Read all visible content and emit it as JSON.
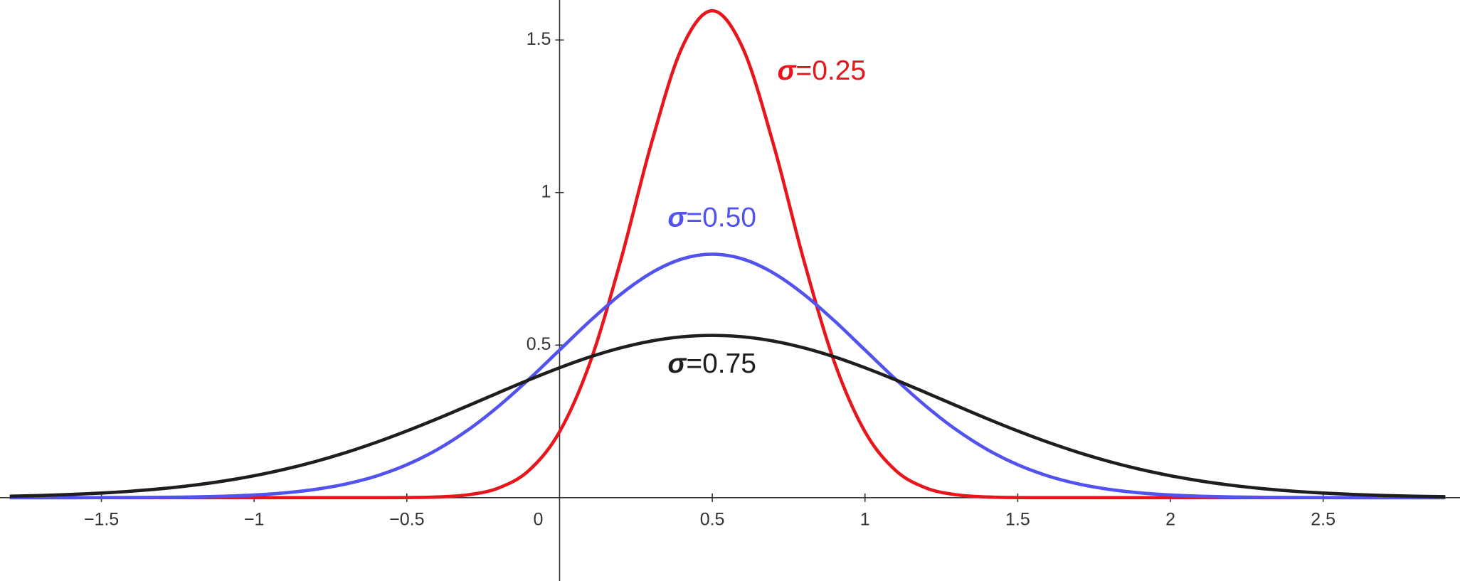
{
  "chart_data": {
    "type": "line",
    "x": [
      -1.8,
      -1.7,
      -1.6,
      -1.5,
      -1.4,
      -1.3,
      -1.2,
      -1.1,
      -1.0,
      -0.9,
      -0.8,
      -0.7,
      -0.6,
      -0.5,
      -0.4,
      -0.3,
      -0.2,
      -0.1,
      0,
      0.1,
      0.2,
      0.3,
      0.4,
      0.5,
      0.6,
      0.7,
      0.8,
      0.9,
      1.0,
      1.1,
      1.2,
      1.3,
      1.4,
      1.5,
      1.6,
      1.7,
      1.8,
      1.9,
      2.0,
      2.1,
      2.2,
      2.3,
      2.4,
      2.5,
      2.6,
      2.7,
      2.8,
      2.9
    ],
    "series": [
      {
        "name": "σ=0.25",
        "color": "#e8161c",
        "values": [
          0,
          0,
          0,
          0,
          0,
          0,
          0,
          0,
          0,
          0,
          0,
          0,
          0.0001,
          0.0005,
          0.0024,
          0.0095,
          0.0317,
          0.0896,
          0.216,
          0.4436,
          0.7768,
          1.1587,
          1.4731,
          1.5958,
          1.4731,
          1.1587,
          0.7768,
          0.4436,
          0.216,
          0.0896,
          0.0317,
          0.0095,
          0.0024,
          0.0005,
          0.0001,
          0,
          0,
          0,
          0,
          0,
          0,
          0,
          0,
          0,
          0,
          0,
          0,
          0
        ]
      },
      {
        "name": "σ=0.50",
        "color": "#5252f0",
        "values": [
          0,
          0.0001,
          0.0001,
          0.0003,
          0.0006,
          0.0012,
          0.0025,
          0.0048,
          0.0089,
          0.0158,
          0.0272,
          0.0448,
          0.071,
          0.108,
          0.1579,
          0.2218,
          0.2995,
          0.3884,
          0.4839,
          0.5794,
          0.6664,
          0.7365,
          0.7821,
          0.7979,
          0.7821,
          0.7365,
          0.6664,
          0.5794,
          0.4839,
          0.3884,
          0.2995,
          0.2218,
          0.1579,
          0.108,
          0.071,
          0.0448,
          0.0272,
          0.0158,
          0.0089,
          0.0048,
          0.0025,
          0.0012,
          0.0006,
          0.0003,
          0.0001,
          0.0001,
          0,
          0
        ]
      },
      {
        "name": "σ=0.75",
        "color": "#1e1e1e",
        "values": [
          0.0048,
          0.0072,
          0.0106,
          0.0152,
          0.0215,
          0.0298,
          0.0407,
          0.0546,
          0.072,
          0.0931,
          0.1184,
          0.1479,
          0.1814,
          0.2187,
          0.2589,
          0.3012,
          0.3441,
          0.3862,
          0.4259,
          0.4614,
          0.491,
          0.5133,
          0.5272,
          0.5319,
          0.5272,
          0.5133,
          0.491,
          0.4614,
          0.4259,
          0.3862,
          0.3441,
          0.3012,
          0.2589,
          0.2187,
          0.1814,
          0.1479,
          0.1184,
          0.0931,
          0.072,
          0.0546,
          0.0407,
          0.0298,
          0.0215,
          0.0152,
          0.0106,
          0.0072,
          0.0048,
          0.0032
        ]
      }
    ],
    "xlim": [
      -1.832,
      2.948
    ],
    "ylim": [
      -0.273,
      1.631
    ],
    "xticks": [
      {
        "value": -1.5,
        "label": "−1.5"
      },
      {
        "value": -1,
        "label": "−1"
      },
      {
        "value": -0.5,
        "label": "−0.5"
      },
      0,
      0.5,
      1,
      1.5,
      2,
      2.5
    ],
    "yticks": [
      0.5,
      1,
      1.5
    ]
  }
}
